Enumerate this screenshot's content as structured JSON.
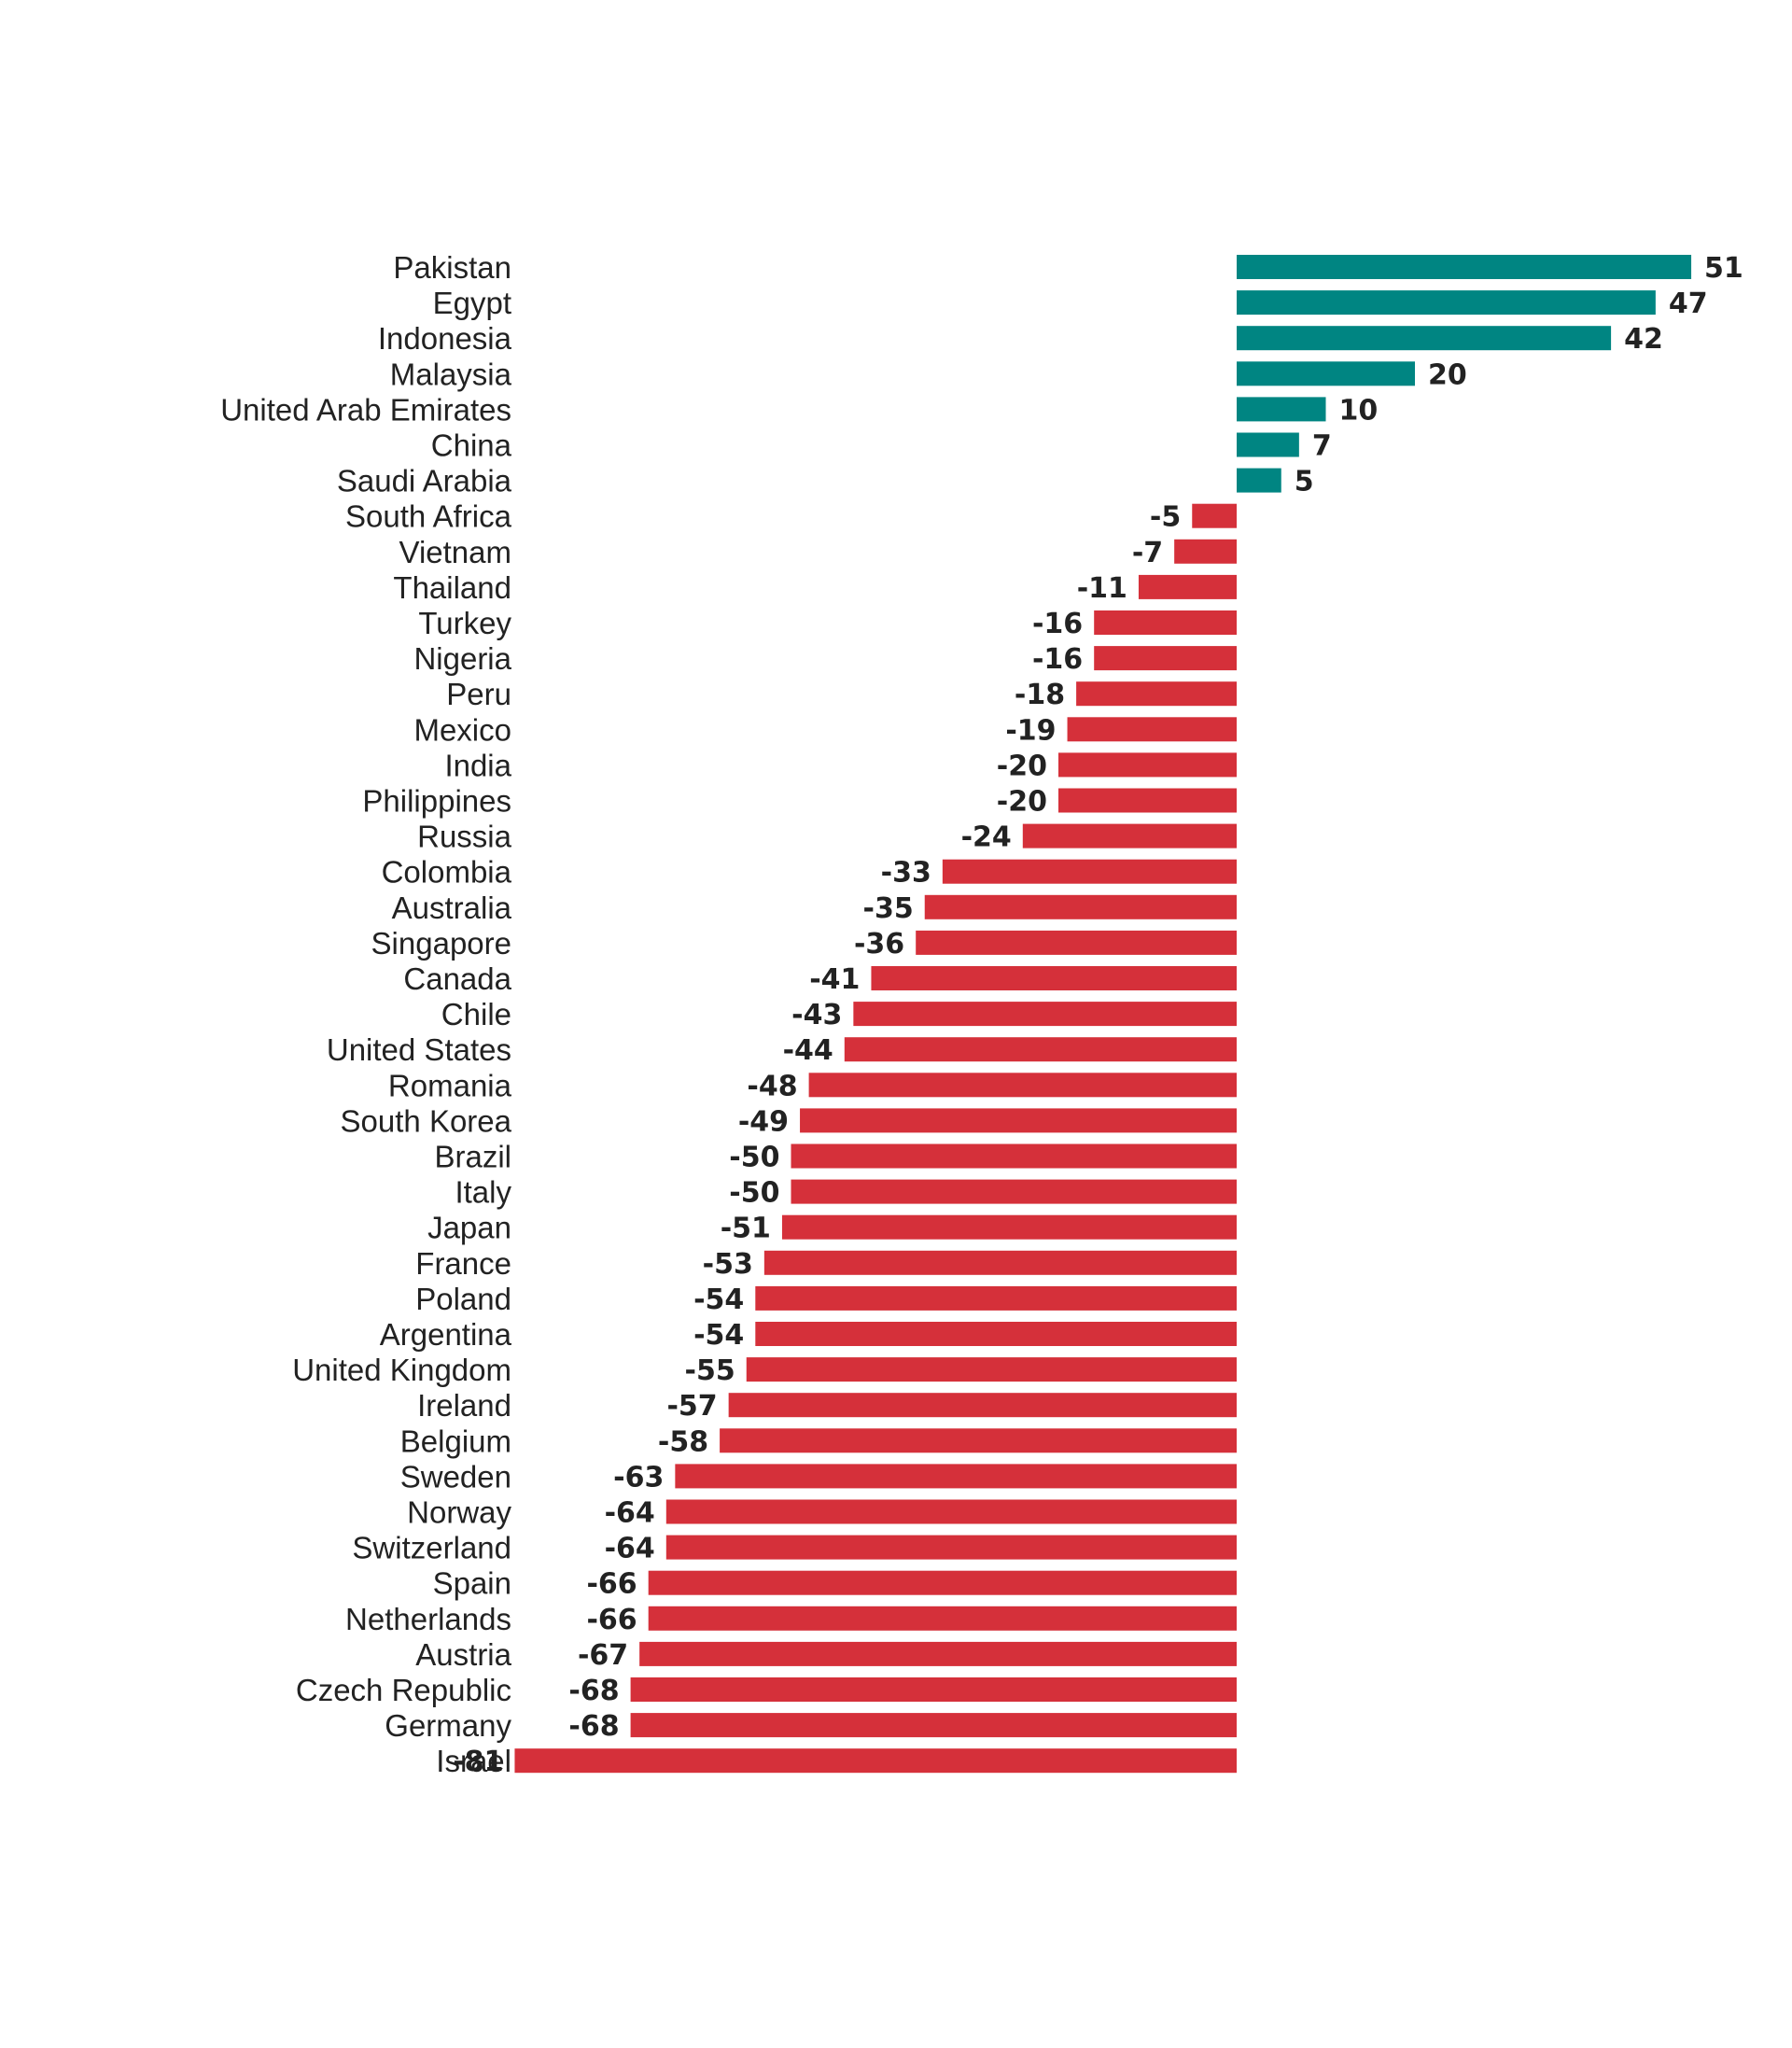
{
  "colors": {
    "positive": "#008582",
    "negative": "#d5303a",
    "text": "#222222"
  },
  "chart_data": {
    "type": "bar",
    "orientation": "horizontal",
    "title": "",
    "xlabel": "",
    "ylabel": "",
    "grid": false,
    "legend": "none",
    "xlim": [
      -81,
      51
    ],
    "categories": [
      "Pakistan",
      "Egypt",
      "Indonesia",
      "Malaysia",
      "United Arab Emirates",
      "China",
      "Saudi Arabia",
      "South Africa",
      "Vietnam",
      "Thailand",
      "Turkey",
      "Nigeria",
      "Peru",
      "Mexico",
      "India",
      "Philippines",
      "Russia",
      "Colombia",
      "Australia",
      "Singapore",
      "Canada",
      "Chile",
      "United States",
      "Romania",
      "South Korea",
      "Brazil",
      "Italy",
      "Japan",
      "France",
      "Poland",
      "Argentina",
      "United Kingdom",
      "Ireland",
      "Belgium",
      "Sweden",
      "Norway",
      "Switzerland",
      "Spain",
      "Netherlands",
      "Austria",
      "Czech Republic",
      "Germany",
      "Israel"
    ],
    "values": [
      51,
      47,
      42,
      20,
      10,
      7,
      5,
      -5,
      -7,
      -11,
      -16,
      -16,
      -18,
      -19,
      -20,
      -20,
      -24,
      -33,
      -35,
      -36,
      -41,
      -43,
      -44,
      -48,
      -49,
      -50,
      -50,
      -51,
      -53,
      -54,
      -54,
      -55,
      -57,
      -58,
      -63,
      -64,
      -64,
      -66,
      -66,
      -67,
      -68,
      -68,
      -81
    ]
  }
}
